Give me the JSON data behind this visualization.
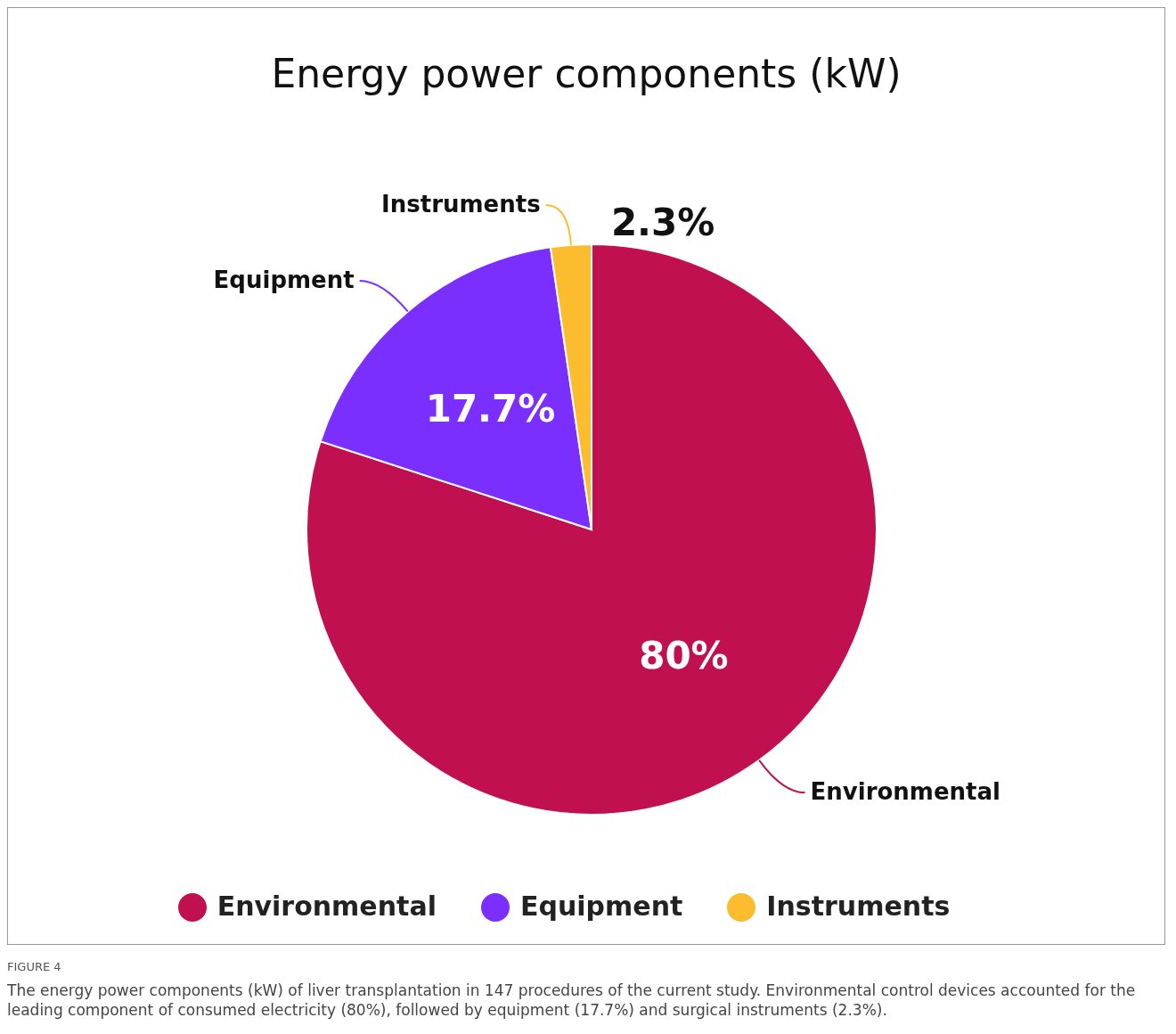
{
  "chart_data": {
    "type": "pie",
    "title": "Energy power components (kW)",
    "categories": [
      "Environmental",
      "Equipment",
      "Instruments"
    ],
    "values": [
      80,
      17.7,
      2.3
    ],
    "colors": [
      "#c0104f",
      "#7b2fff",
      "#fbbc2e"
    ],
    "value_labels": [
      "80%",
      "17.7%",
      "2.3%"
    ],
    "legend": "bottom",
    "annotations": [
      "FIGURE 4",
      "The energy power components (kW) of liver transplantation in 147 procedures of the current study. Environmental control devices accounted for the leading component of consumed electricity (80%), followed by equipment (17.7%) and surgical instruments (2.3%)."
    ]
  }
}
